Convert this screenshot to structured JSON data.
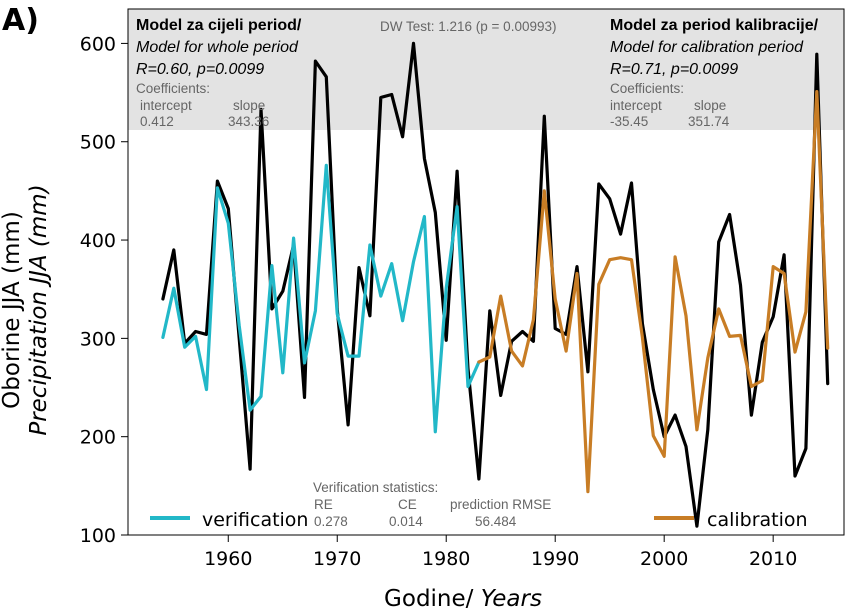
{
  "panel_label": "A)",
  "chart_data": {
    "type": "line",
    "xlabel": "Godine/",
    "xlabel_italic": "Years",
    "ylabel": "Oborine JJA (mm)",
    "ylabel_italic": "Precipitation JJA (mm)",
    "xlim": [
      1950.8,
      2016.5
    ],
    "ylim": [
      100,
      635
    ],
    "xticks": [
      1960,
      1970,
      1980,
      1990,
      2000,
      2010
    ],
    "yticks": [
      100,
      200,
      300,
      400,
      500,
      600
    ],
    "grid": false,
    "series": [
      {
        "name": "",
        "color": "#000000",
        "x": [
          1954,
          1955,
          1956,
          1957,
          1958,
          1959,
          1960,
          1961,
          1962,
          1963,
          1964,
          1965,
          1966,
          1967,
          1968,
          1969,
          1970,
          1971,
          1972,
          1973,
          1974,
          1975,
          1976,
          1977,
          1978,
          1979,
          1980,
          1981,
          1982,
          1983,
          1984,
          1985,
          1986,
          1987,
          1988,
          1989,
          1990,
          1991,
          1992,
          1993,
          1994,
          1995,
          1996,
          1997,
          1998,
          1999,
          2000,
          2001,
          2002,
          2003,
          2004,
          2005,
          2006,
          2007,
          2008,
          2009,
          2010,
          2011,
          2012,
          2013,
          2014,
          2015
        ],
        "values": [
          340,
          390,
          295,
          307,
          304,
          460,
          432,
          300,
          167,
          533,
          330,
          348,
          395,
          240,
          582,
          566,
          330,
          212,
          372,
          323,
          545,
          548,
          505,
          600,
          483,
          428,
          298,
          470,
          269,
          157,
          328,
          242,
          297,
          307,
          297,
          526,
          310,
          304,
          373,
          266,
          457,
          442,
          406,
          458,
          315,
          248,
          200,
          222,
          190,
          109,
          207,
          398,
          426,
          354,
          222,
          296,
          322,
          385,
          160,
          188,
          589,
          254
        ]
      },
      {
        "name": "verification",
        "color": "#22b8c8",
        "x": [
          1954,
          1955,
          1956,
          1957,
          1958,
          1959,
          1960,
          1961,
          1962,
          1963,
          1964,
          1965,
          1966,
          1967,
          1968,
          1969,
          1970,
          1971,
          1972,
          1973,
          1974,
          1975,
          1976,
          1977,
          1978,
          1979,
          1980,
          1981,
          1982,
          1983
        ],
        "values": [
          301,
          351,
          291,
          302,
          248,
          453,
          417,
          313,
          227,
          241,
          374,
          265,
          402,
          275,
          328,
          476,
          325,
          282,
          282,
          395,
          343,
          376,
          318,
          378,
          424,
          205,
          351,
          434,
          251,
          276
        ]
      },
      {
        "name": "calibration",
        "color": "#c87d25",
        "x": [
          1983,
          1984,
          1985,
          1986,
          1987,
          1988,
          1989,
          1990,
          1991,
          1992,
          1993,
          1994,
          1995,
          1996,
          1997,
          1998,
          1999,
          2000,
          2001,
          2002,
          2003,
          2004,
          2005,
          2006,
          2007,
          2008,
          2009,
          2010,
          2011,
          2012,
          2013,
          2014,
          2015
        ],
        "values": [
          276,
          281,
          343,
          287,
          272,
          319,
          450,
          340,
          287,
          366,
          144,
          355,
          380,
          382,
          380,
          301,
          201,
          180,
          383,
          323,
          207,
          280,
          330,
          302,
          303,
          251,
          257,
          373,
          366,
          286,
          327,
          551,
          290
        ]
      }
    ],
    "annotations": {
      "left_title_bold": "Model za cijeli period/",
      "left_title_italic": "Model for whole period",
      "left_stats": "R=0.60, p=0.0099",
      "left_coef_label": "Coefficients:",
      "left_coef_headers": [
        "intercept",
        "slope"
      ],
      "left_coef_values": [
        "0.412",
        "343.36"
      ],
      "dw_test": "DW Test: 1.216 (p = 0.00993)",
      "right_title_bold": "Model za period kalibracije/",
      "right_title_italic": "Model for calibration period",
      "right_stats": "R=0.71, p=0.0099",
      "right_coef_label": "Coefficients:",
      "right_coef_headers": [
        "intercept",
        "slope"
      ],
      "right_coef_values": [
        "-35.45",
        "351.74"
      ],
      "verif_stats_title": "Verification statistics:",
      "verif_stats_headers": [
        "RE",
        "CE",
        "prediction RMSE"
      ],
      "verif_stats_values": [
        "0.278",
        "0.014",
        "56.484"
      ]
    },
    "legend": [
      {
        "label": "verification",
        "color": "#22b8c8",
        "placement": "bottom-left"
      },
      {
        "label": "calibration",
        "color": "#c87d25",
        "placement": "bottom-right"
      }
    ]
  }
}
